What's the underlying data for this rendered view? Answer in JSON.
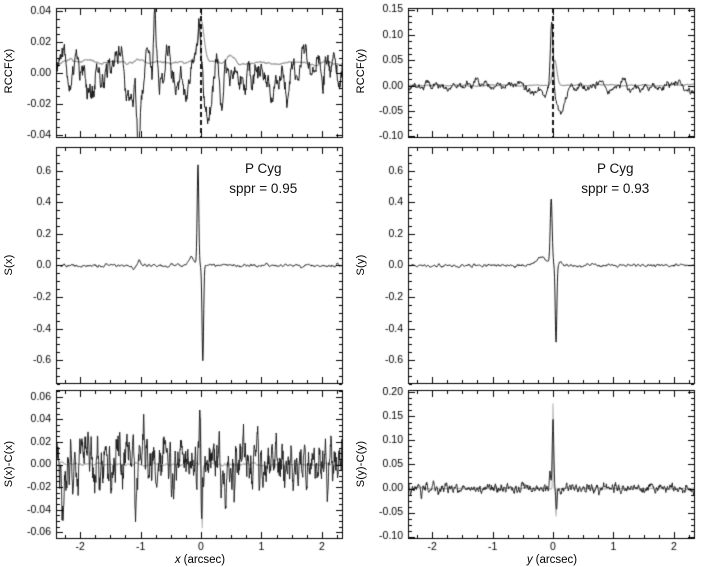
{
  "figure": {
    "background": "#ffffff",
    "axis_color": "#000000",
    "object_name": "P Cyg"
  },
  "chart_data": [
    {
      "id": "rccf-x",
      "type": "line",
      "row": 0,
      "col": 0,
      "ylabel": "RCCF(x)",
      "xlim": [
        -2.4,
        2.35
      ],
      "ylim": [
        -0.042,
        0.042
      ],
      "yticks": [
        0.04,
        0.02,
        0.0,
        -0.02,
        -0.04
      ],
      "ytick_decimals": 2,
      "xticks": [
        -2,
        -1,
        0,
        1,
        2
      ],
      "xtick_minor": 0.25,
      "show_xtick_labels": false,
      "dashed_vline_x": 0,
      "series": [
        {
          "name": "comparison-rccf-gray",
          "color": "#9c9c9c",
          "lw": 1.2,
          "baseline": 0.0068,
          "noise_sigma": 0.0008,
          "smooth": 10,
          "n": 600,
          "features": [
            {
              "x": 0.0,
              "amp": 0.0275,
              "w": 0.05
            },
            {
              "x": 0.5,
              "amp": 0.004,
              "w": 0.07
            }
          ]
        },
        {
          "name": "target-rccf-black",
          "color": "#1a1a1a",
          "lw": 1,
          "baseline": 0.0,
          "noise_sigma": 0.0085,
          "smooth": 5,
          "n": 650,
          "features": [
            {
              "x": -0.03,
              "amp": 0.034,
              "w": 0.03
            },
            {
              "x": 0.09,
              "amp": -0.027,
              "w": 0.045
            },
            {
              "x": -0.76,
              "amp": 0.031,
              "w": 0.022
            },
            {
              "x": -1.04,
              "amp": -0.044,
              "w": 0.02
            }
          ]
        }
      ]
    },
    {
      "id": "s-x",
      "type": "line",
      "row": 1,
      "col": 0,
      "ylabel": "S(x)",
      "annotation": [
        "P Cyg",
        "sppr = 0.95"
      ],
      "sppr": 0.95,
      "xlim": [
        -2.4,
        2.35
      ],
      "ylim": [
        -0.75,
        0.75
      ],
      "yticks": [
        0.6,
        0.4,
        0.2,
        0.0,
        -0.2,
        -0.4,
        -0.6
      ],
      "ytick_decimals": 1,
      "xticks": [
        -2,
        -1,
        0,
        1,
        2
      ],
      "xtick_minor": 0.25,
      "show_xtick_labels": false,
      "dashed_vline_x": null,
      "series": [
        {
          "name": "signal-x-black",
          "color": "#1a1a1a",
          "lw": 1,
          "baseline": 0.0,
          "noise_sigma": 0.005,
          "smooth": 3,
          "n": 900,
          "features": [
            {
              "x": -0.16,
              "amp": 0.05,
              "w": 0.05
            },
            {
              "x": -0.05,
              "amp": 0.63,
              "w": 0.013
            },
            {
              "x": 0.03,
              "amp": -0.6,
              "w": 0.013
            },
            {
              "x": -1.02,
              "amp": 0.035,
              "w": 0.02
            },
            {
              "x": -1.12,
              "amp": -0.025,
              "w": 0.02
            }
          ]
        }
      ]
    },
    {
      "id": "sx-minus-cx",
      "type": "line",
      "row": 2,
      "col": 0,
      "ylabel": "S(x)-C(x)",
      "xlabel_var": "x",
      "xlabel_unit": "(arcsec)",
      "xlim": [
        -2.4,
        2.35
      ],
      "ylim": [
        -0.066,
        0.066
      ],
      "yticks": [
        0.06,
        0.04,
        0.02,
        0.0,
        -0.02,
        -0.04,
        -0.06
      ],
      "ytick_decimals": 2,
      "xticks": [
        -2,
        -1,
        0,
        1,
        2
      ],
      "xtick_minor": 0.25,
      "show_xtick_labels": true,
      "dashed_vline_x": null,
      "series": [
        {
          "name": "residual-x-gray",
          "color": "#b4b4b4",
          "lw": 1.1,
          "baseline": 0.0,
          "noise_sigma": 0.0008,
          "smooth": 4,
          "n": 900,
          "features": [
            {
              "x": -0.01,
              "amp": 0.05,
              "w": 0.007
            },
            {
              "x": 0.02,
              "amp": -0.055,
              "w": 0.007
            }
          ]
        },
        {
          "name": "residual-x-black",
          "color": "#1a1a1a",
          "lw": 0.9,
          "baseline": 0.0,
          "noise_sigma": 0.0125,
          "smooth": 2,
          "n": 950,
          "features": [
            {
              "x": -0.02,
              "amp": 0.035,
              "w": 0.01
            },
            {
              "x": 0.01,
              "amp": -0.05,
              "w": 0.009
            },
            {
              "x": -0.95,
              "amp": 0.03,
              "w": 0.015
            },
            {
              "x": -1.08,
              "amp": -0.028,
              "w": 0.015
            },
            {
              "x": -2.3,
              "amp": -0.02,
              "w": 0.05
            }
          ]
        }
      ]
    },
    {
      "id": "rccf-y",
      "type": "line",
      "row": 0,
      "col": 1,
      "ylabel": "RCCF(y)",
      "xlim": [
        -2.4,
        2.35
      ],
      "ylim": [
        -0.103,
        0.153
      ],
      "yticks": [
        0.15,
        0.1,
        0.05,
        0.0,
        -0.05,
        -0.1
      ],
      "ytick_decimals": 2,
      "xticks": [
        -2,
        -1,
        0,
        1,
        2
      ],
      "xtick_minor": 0.25,
      "show_xtick_labels": false,
      "dashed_vline_x": 0,
      "series": [
        {
          "name": "comparison-rccf-gray",
          "color": "#9c9c9c",
          "lw": 1.2,
          "baseline": 0.001,
          "noise_sigma": 0.001,
          "smooth": 10,
          "n": 600,
          "features": [
            {
              "x": 0.03,
              "amp": 0.05,
              "w": 0.035
            }
          ]
        },
        {
          "name": "target-rccf-black",
          "color": "#1a1a1a",
          "lw": 1,
          "baseline": 0.0,
          "noise_sigma": 0.007,
          "smooth": 5,
          "n": 650,
          "features": [
            {
              "x": -0.02,
              "amp": 0.13,
              "w": 0.022
            },
            {
              "x": 0.13,
              "amp": -0.05,
              "w": 0.07
            },
            {
              "x": -0.3,
              "amp": -0.018,
              "w": 0.15
            }
          ]
        }
      ]
    },
    {
      "id": "s-y",
      "type": "line",
      "row": 1,
      "col": 1,
      "ylabel": "S(y)",
      "annotation": [
        "P Cyg",
        "sppr = 0.93"
      ],
      "sppr": 0.93,
      "xlim": [
        -2.4,
        2.35
      ],
      "ylim": [
        -0.75,
        0.75
      ],
      "yticks": [
        0.6,
        0.4,
        0.2,
        0.0,
        -0.2,
        -0.4,
        -0.6
      ],
      "ytick_decimals": 1,
      "xticks": [
        -2,
        -1,
        0,
        1,
        2
      ],
      "xtick_minor": 0.25,
      "show_xtick_labels": false,
      "dashed_vline_x": null,
      "series": [
        {
          "name": "signal-y-black",
          "color": "#1a1a1a",
          "lw": 1,
          "baseline": 0.0,
          "noise_sigma": 0.0045,
          "smooth": 3,
          "n": 900,
          "features": [
            {
              "x": -0.2,
              "amp": 0.05,
              "w": 0.09
            },
            {
              "x": -0.03,
              "amp": 0.42,
              "w": 0.016
            },
            {
              "x": 0.05,
              "amp": -0.49,
              "w": 0.013
            },
            {
              "x": 0.12,
              "amp": 0.03,
              "w": 0.02
            }
          ]
        }
      ]
    },
    {
      "id": "sy-minus-cy",
      "type": "line",
      "row": 2,
      "col": 1,
      "ylabel": "S(y)-C(y)",
      "xlabel_var": "y",
      "xlabel_unit": "(arcsec)",
      "xlim": [
        -2.4,
        2.35
      ],
      "ylim": [
        -0.105,
        0.205
      ],
      "yticks": [
        0.2,
        0.15,
        0.1,
        0.05,
        0.0,
        -0.05,
        -0.1
      ],
      "ytick_decimals": 2,
      "xticks": [
        -2,
        -1,
        0,
        1,
        2
      ],
      "xtick_minor": 0.25,
      "show_xtick_labels": true,
      "dashed_vline_x": null,
      "series": [
        {
          "name": "residual-y-gray",
          "color": "#b4b4b4",
          "lw": 1.1,
          "baseline": 0.0,
          "noise_sigma": 0.0008,
          "smooth": 4,
          "n": 900,
          "features": [
            {
              "x": 0.0,
              "amp": 0.18,
              "w": 0.006
            },
            {
              "x": 0.05,
              "amp": -0.06,
              "w": 0.006
            }
          ]
        },
        {
          "name": "residual-y-black",
          "color": "#1a1a1a",
          "lw": 0.9,
          "baseline": 0.0,
          "noise_sigma": 0.0055,
          "smooth": 2,
          "n": 950,
          "features": [
            {
              "x": 0.0,
              "amp": 0.15,
              "w": 0.012
            },
            {
              "x": 0.06,
              "amp": -0.05,
              "w": 0.01
            },
            {
              "x": -0.05,
              "amp": 0.03,
              "w": 0.012
            }
          ]
        }
      ]
    }
  ]
}
